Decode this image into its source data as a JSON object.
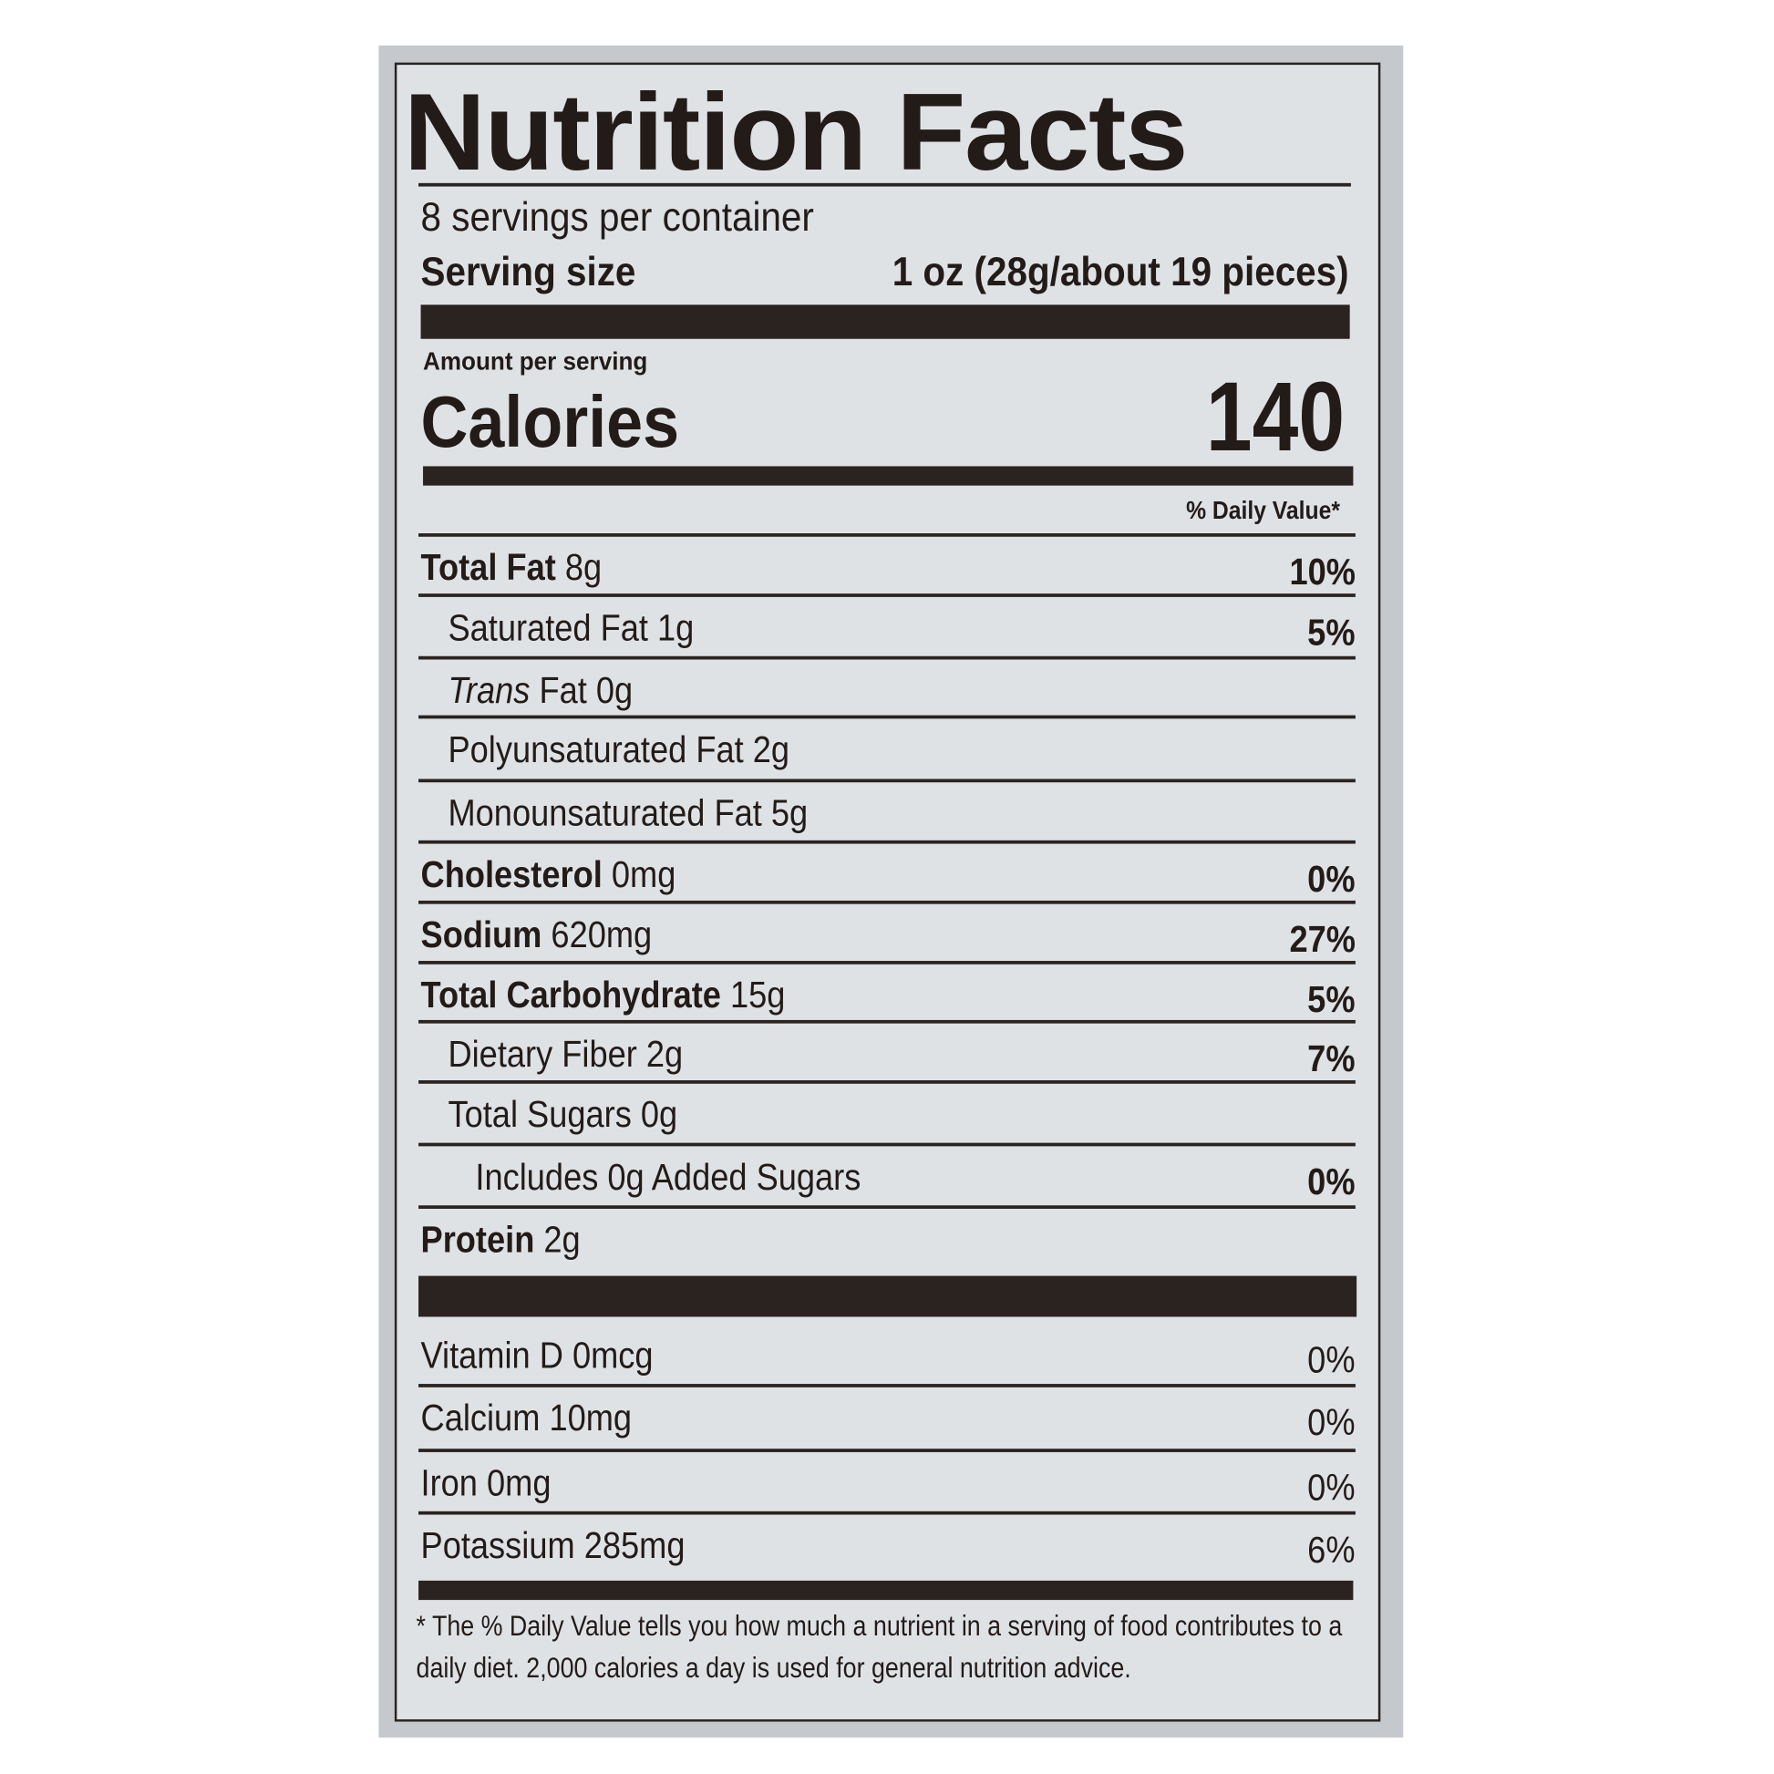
{
  "title": "Nutrition Facts",
  "servings_per_container": "8 servings per container",
  "serving_size": {
    "label": "Serving size",
    "value": "1 oz (28g/about 19 pieces)"
  },
  "amount_per_serving": "Amount per serving",
  "calories": {
    "label": "Calories",
    "value": "140"
  },
  "daily_value_header": "% Daily Value*",
  "nutrients": [
    {
      "name": "Total Fat",
      "amount": "8g",
      "dv": "10%",
      "bold": true,
      "indent": 0
    },
    {
      "name": "Saturated Fat",
      "amount": "1g",
      "dv": "5%",
      "bold": false,
      "indent": 1
    },
    {
      "name": "Trans",
      "name_suffix": "Fat",
      "amount": "0g",
      "dv": "",
      "bold": false,
      "indent": 1,
      "italic": true
    },
    {
      "name": "Polyunsaturated Fat",
      "amount": "2g",
      "dv": "",
      "bold": false,
      "indent": 1
    },
    {
      "name": "Monounsaturated Fat",
      "amount": "5g",
      "dv": "",
      "bold": false,
      "indent": 1
    },
    {
      "name": "Cholesterol",
      "amount": "0mg",
      "dv": "0%",
      "bold": true,
      "indent": 0
    },
    {
      "name": "Sodium",
      "amount": "620mg",
      "dv": "27%",
      "bold": true,
      "indent": 0
    },
    {
      "name": "Total Carbohydrate",
      "amount": "15g",
      "dv": "5%",
      "bold": true,
      "indent": 0
    },
    {
      "name": "Dietary Fiber",
      "amount": "2g",
      "dv": "7%",
      "bold": false,
      "indent": 1
    },
    {
      "name": "Total Sugars",
      "amount": "0g",
      "dv": "",
      "bold": false,
      "indent": 1
    },
    {
      "name": "Includes 0g Added Sugars",
      "amount": "",
      "dv": "0%",
      "bold": false,
      "indent": 2
    },
    {
      "name": "Protein",
      "amount": "2g",
      "dv": "",
      "bold": true,
      "indent": 0
    }
  ],
  "vitamins": [
    {
      "name": "Vitamin D",
      "amount": "0mcg",
      "dv": "0%"
    },
    {
      "name": "Calcium",
      "amount": "10mg",
      "dv": "0%"
    },
    {
      "name": "Iron",
      "amount": "0mg",
      "dv": "0%"
    },
    {
      "name": "Potassium",
      "amount": "285mg",
      "dv": "6%"
    }
  ],
  "footnote": "* The % Daily Value tells you how much a nutrient in a serving of food contributes to a daily diet. 2,000 calories a day is used for general nutrition advice."
}
